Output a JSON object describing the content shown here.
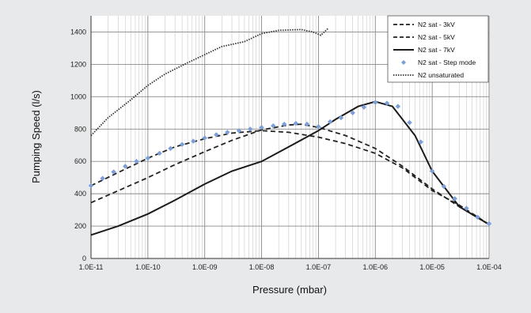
{
  "chart_data": {
    "type": "line",
    "xlabel": "Pressure (mbar)",
    "ylabel": "Pumping Speed (l/s)",
    "x_scale": "log",
    "xlim": [
      1e-11,
      0.0001
    ],
    "ylim": [
      0,
      1500
    ],
    "grid": true,
    "legend_position": "top-right",
    "x_ticks": [
      {
        "value": 1e-11,
        "label": "1.0E-11"
      },
      {
        "value": 1e-10,
        "label": "1.0E-10"
      },
      {
        "value": 1e-09,
        "label": "1.0E-09"
      },
      {
        "value": 1e-08,
        "label": "1.0E-08"
      },
      {
        "value": 1e-07,
        "label": "1.0E-07"
      },
      {
        "value": 1e-06,
        "label": "1.0E-06"
      },
      {
        "value": 1e-05,
        "label": "1.0E-05"
      },
      {
        "value": 0.0001,
        "label": "1.0E-04"
      }
    ],
    "y_ticks": [
      {
        "value": 0,
        "label": "0"
      },
      {
        "value": 200,
        "label": "200"
      },
      {
        "value": 400,
        "label": "400"
      },
      {
        "value": 600,
        "label": "600"
      },
      {
        "value": 800,
        "label": "800"
      },
      {
        "value": 1000,
        "label": "1000"
      },
      {
        "value": 1200,
        "label": "1200"
      },
      {
        "value": 1400,
        "label": "1400"
      }
    ],
    "series": [
      {
        "name": "N2 sat - 3kV",
        "style": "dashed",
        "color": "#222222",
        "x": [
          1e-11,
          1e-10,
          3e-10,
          1e-09,
          3e-09,
          1e-08,
          3e-08,
          1e-07,
          3e-07,
          1e-06,
          3e-06,
          1e-05,
          3e-05,
          0.0001
        ],
        "y": [
          450,
          620,
          690,
          740,
          775,
          790,
          780,
          750,
          710,
          650,
          560,
          420,
          330,
          210
        ]
      },
      {
        "name": "N2 sat - 5kV",
        "style": "dashed",
        "color": "#222222",
        "x": [
          1e-11,
          1e-10,
          3e-10,
          1e-09,
          3e-09,
          1e-08,
          3e-08,
          5e-08,
          1e-07,
          3e-07,
          1e-06,
          3e-06,
          1e-05,
          3e-05,
          0.0001
        ],
        "y": [
          345,
          500,
          580,
          660,
          730,
          795,
          825,
          830,
          810,
          760,
          680,
          570,
          430,
          320,
          210
        ]
      },
      {
        "name": "N2 sat - 7kV",
        "style": "solid",
        "color": "#1a1a1a",
        "x": [
          1e-11,
          3e-11,
          1e-10,
          3e-10,
          1e-09,
          3e-09,
          1e-08,
          3e-08,
          1e-07,
          2e-07,
          5e-07,
          1e-06,
          2e-06,
          5e-06,
          1e-05,
          3e-05,
          0.0001
        ],
        "y": [
          145,
          200,
          275,
          360,
          460,
          540,
          600,
          690,
          790,
          860,
          940,
          970,
          940,
          760,
          540,
          320,
          210
        ]
      },
      {
        "name": "N2 sat - Step mode",
        "style": "markers",
        "color": "#7b9fd6",
        "x": [
          1e-11,
          1.6e-11,
          2.5e-11,
          4e-11,
          6.3e-11,
          1e-10,
          1.6e-10,
          2.5e-10,
          4e-10,
          6.3e-10,
          1e-09,
          1.6e-09,
          2.5e-09,
          4e-09,
          6.3e-09,
          1e-08,
          1.6e-08,
          2.5e-08,
          4e-08,
          6.3e-08,
          1e-07,
          1.6e-07,
          2.5e-07,
          4e-07,
          6.3e-07,
          1e-06,
          1.6e-06,
          2.5e-06,
          4e-06,
          6.3e-06,
          1e-05,
          1.6e-05,
          2.5e-05,
          4e-05,
          6.3e-05,
          0.0001
        ],
        "y": [
          450,
          495,
          535,
          570,
          600,
          620,
          650,
          680,
          705,
          725,
          745,
          765,
          780,
          790,
          800,
          810,
          820,
          830,
          835,
          830,
          815,
          845,
          870,
          900,
          935,
          965,
          960,
          940,
          840,
          720,
          540,
          445,
          370,
          310,
          255,
          215
        ]
      },
      {
        "name": "N2 unsaturated",
        "style": "dotted",
        "color": "#333333",
        "x": [
          1e-11,
          2e-11,
          5e-11,
          1e-10,
          2e-10,
          5e-10,
          1e-09,
          2e-09,
          5e-09,
          1e-08,
          2e-08,
          5e-08,
          8e-08,
          1.1e-07,
          1.5e-07
        ],
        "y": [
          760,
          870,
          980,
          1070,
          1140,
          1210,
          1260,
          1310,
          1340,
          1390,
          1410,
          1415,
          1400,
          1380,
          1425
        ]
      }
    ]
  }
}
